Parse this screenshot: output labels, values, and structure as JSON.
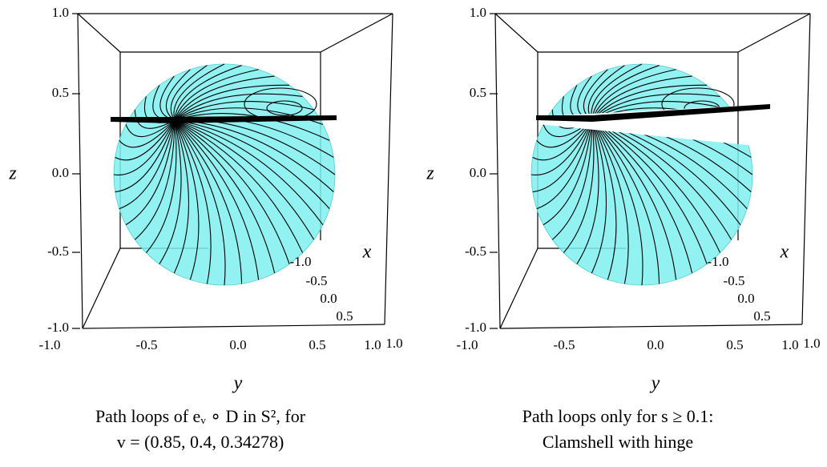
{
  "panels": [
    {
      "z_axis_label": "z",
      "y_axis_label": "y",
      "x_axis_label": "x",
      "z_ticks": [
        "1.0",
        "0.5",
        "0.0",
        "-0.5",
        "-1.0"
      ],
      "y_ticks": [
        "-1.0",
        "-0.5",
        "0.0",
        "0.5",
        "1.0"
      ],
      "x_ticks": [
        "-1.0",
        "-0.5",
        "0.0",
        "0.5",
        "1.0"
      ],
      "caption": [
        "Path loops of eᵥ ∘ D in S², for",
        "v = (0.85, 0.4, 0.34278)"
      ]
    },
    {
      "z_axis_label": "z",
      "y_axis_label": "y",
      "x_axis_label": "x",
      "z_ticks": [
        "1.0",
        "0.5",
        "0.0",
        "-0.5",
        "-1.0"
      ],
      "y_ticks": [
        "-1.0",
        "-0.5",
        "0.0",
        "0.5",
        "1.0"
      ],
      "x_ticks": [
        "-1.0",
        "-0.5",
        "0.0",
        "0.5",
        "1.0"
      ],
      "caption": [
        "Path loops only for s ≥ 0.1:",
        "Clamshell with hinge"
      ]
    }
  ]
}
